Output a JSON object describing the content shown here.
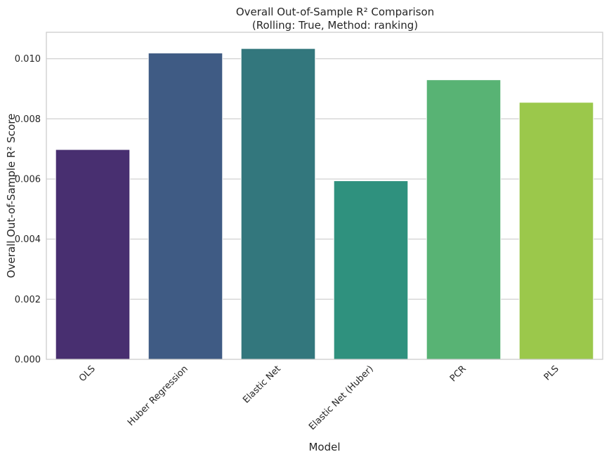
{
  "chart_data": {
    "type": "bar",
    "title": "Overall Out-of-Sample R² Comparison",
    "subtitle": "(Rolling: True, Method: ranking)",
    "xlabel": "Model",
    "ylabel": "Overall Out-of-Sample R² Score",
    "categories": [
      "OLS",
      "Huber Regression",
      "Elastic Net",
      "Elastic Net (Huber)",
      "PCR",
      "PLS"
    ],
    "values": [
      0.00698,
      0.01019,
      0.01034,
      0.00594,
      0.0093,
      0.00855
    ],
    "colors": [
      "#482f70",
      "#3f5b84",
      "#33777d",
      "#2f917e",
      "#58b374",
      "#9bc84b"
    ],
    "ylim": [
      0,
      0.01088
    ],
    "yticks": [
      "0.000",
      "0.002",
      "0.004",
      "0.006",
      "0.008",
      "0.010"
    ],
    "ytick_values": [
      0,
      0.002,
      0.004,
      0.006,
      0.008,
      0.01
    ],
    "grid": true,
    "legend": "none"
  }
}
